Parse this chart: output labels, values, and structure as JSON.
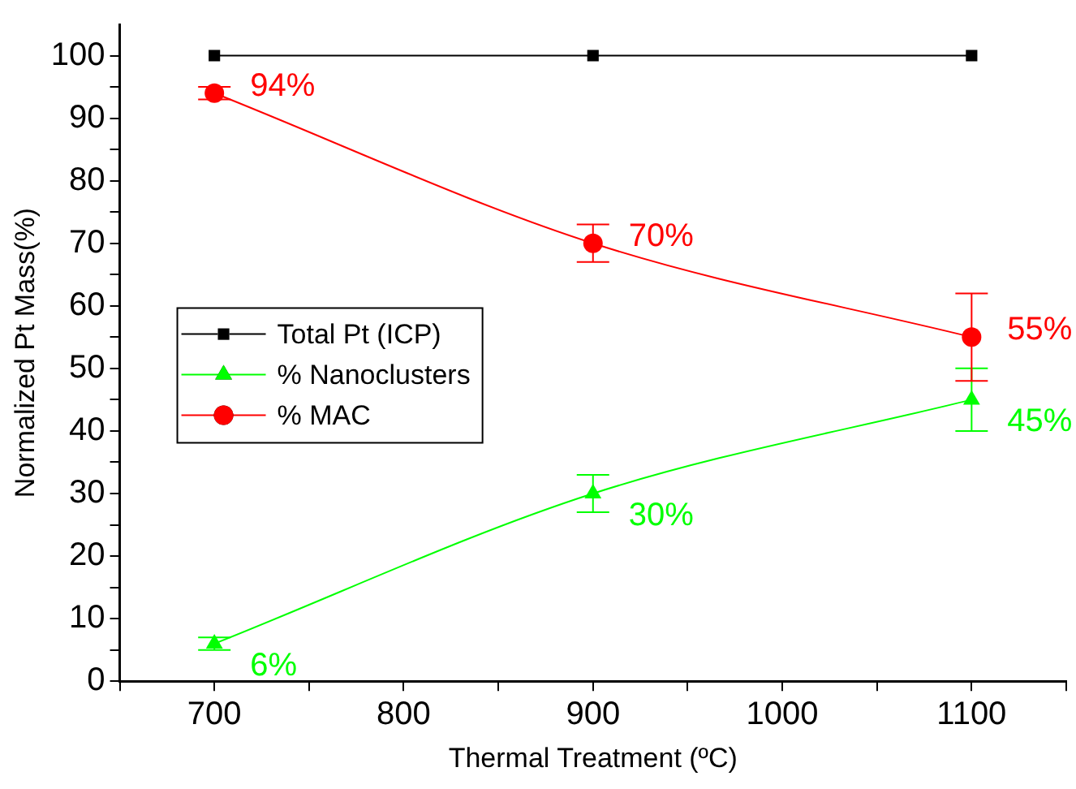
{
  "chart_data": {
    "type": "line",
    "xlabel": "Thermal Treatment (ºC)",
    "ylabel": "Normalized Pt Mass(%)",
    "x": [
      700,
      900,
      1100
    ],
    "series": [
      {
        "name": "Total Pt (ICP)",
        "color": "#000000",
        "marker": "square",
        "values": [
          100,
          100,
          100
        ]
      },
      {
        "name": "% Nanoclusters",
        "color": "#00ff00",
        "marker": "triangle",
        "values": [
          6,
          30,
          45
        ],
        "errors": [
          1,
          3,
          5
        ],
        "value_labels": [
          "6%",
          "30%",
          "45%"
        ]
      },
      {
        "name": "% MAC",
        "color": "#ff0000",
        "marker": "circle",
        "values": [
          94,
          70,
          55
        ],
        "errors": [
          1,
          3,
          7
        ],
        "value_labels": [
          "94%",
          "70%",
          "55%"
        ]
      }
    ],
    "xlim": [
      650,
      1150
    ],
    "xticks": [
      {
        "value": 650,
        "label": null
      },
      700,
      {
        "value": 750,
        "label": null
      },
      800,
      {
        "value": 850,
        "label": null
      },
      900,
      {
        "value": 950,
        "label": null
      },
      1000,
      {
        "value": 1050,
        "label": null
      },
      1100,
      {
        "value": 1150,
        "label": null
      }
    ],
    "ylim": [
      0,
      105
    ],
    "yticks": [
      0,
      {
        "value": 5,
        "label": null
      },
      10,
      {
        "value": 15,
        "label": null
      },
      20,
      {
        "value": 25,
        "label": null
      },
      30,
      {
        "value": 35,
        "label": null
      },
      40,
      {
        "value": 45,
        "label": null
      },
      50,
      {
        "value": 55,
        "label": null
      },
      60,
      {
        "value": 65,
        "label": null
      },
      70,
      {
        "value": 75,
        "label": null
      },
      80,
      {
        "value": 85,
        "label": null
      },
      90,
      {
        "value": 95,
        "label": null
      },
      100
    ],
    "legend": "left",
    "grid": false
  }
}
